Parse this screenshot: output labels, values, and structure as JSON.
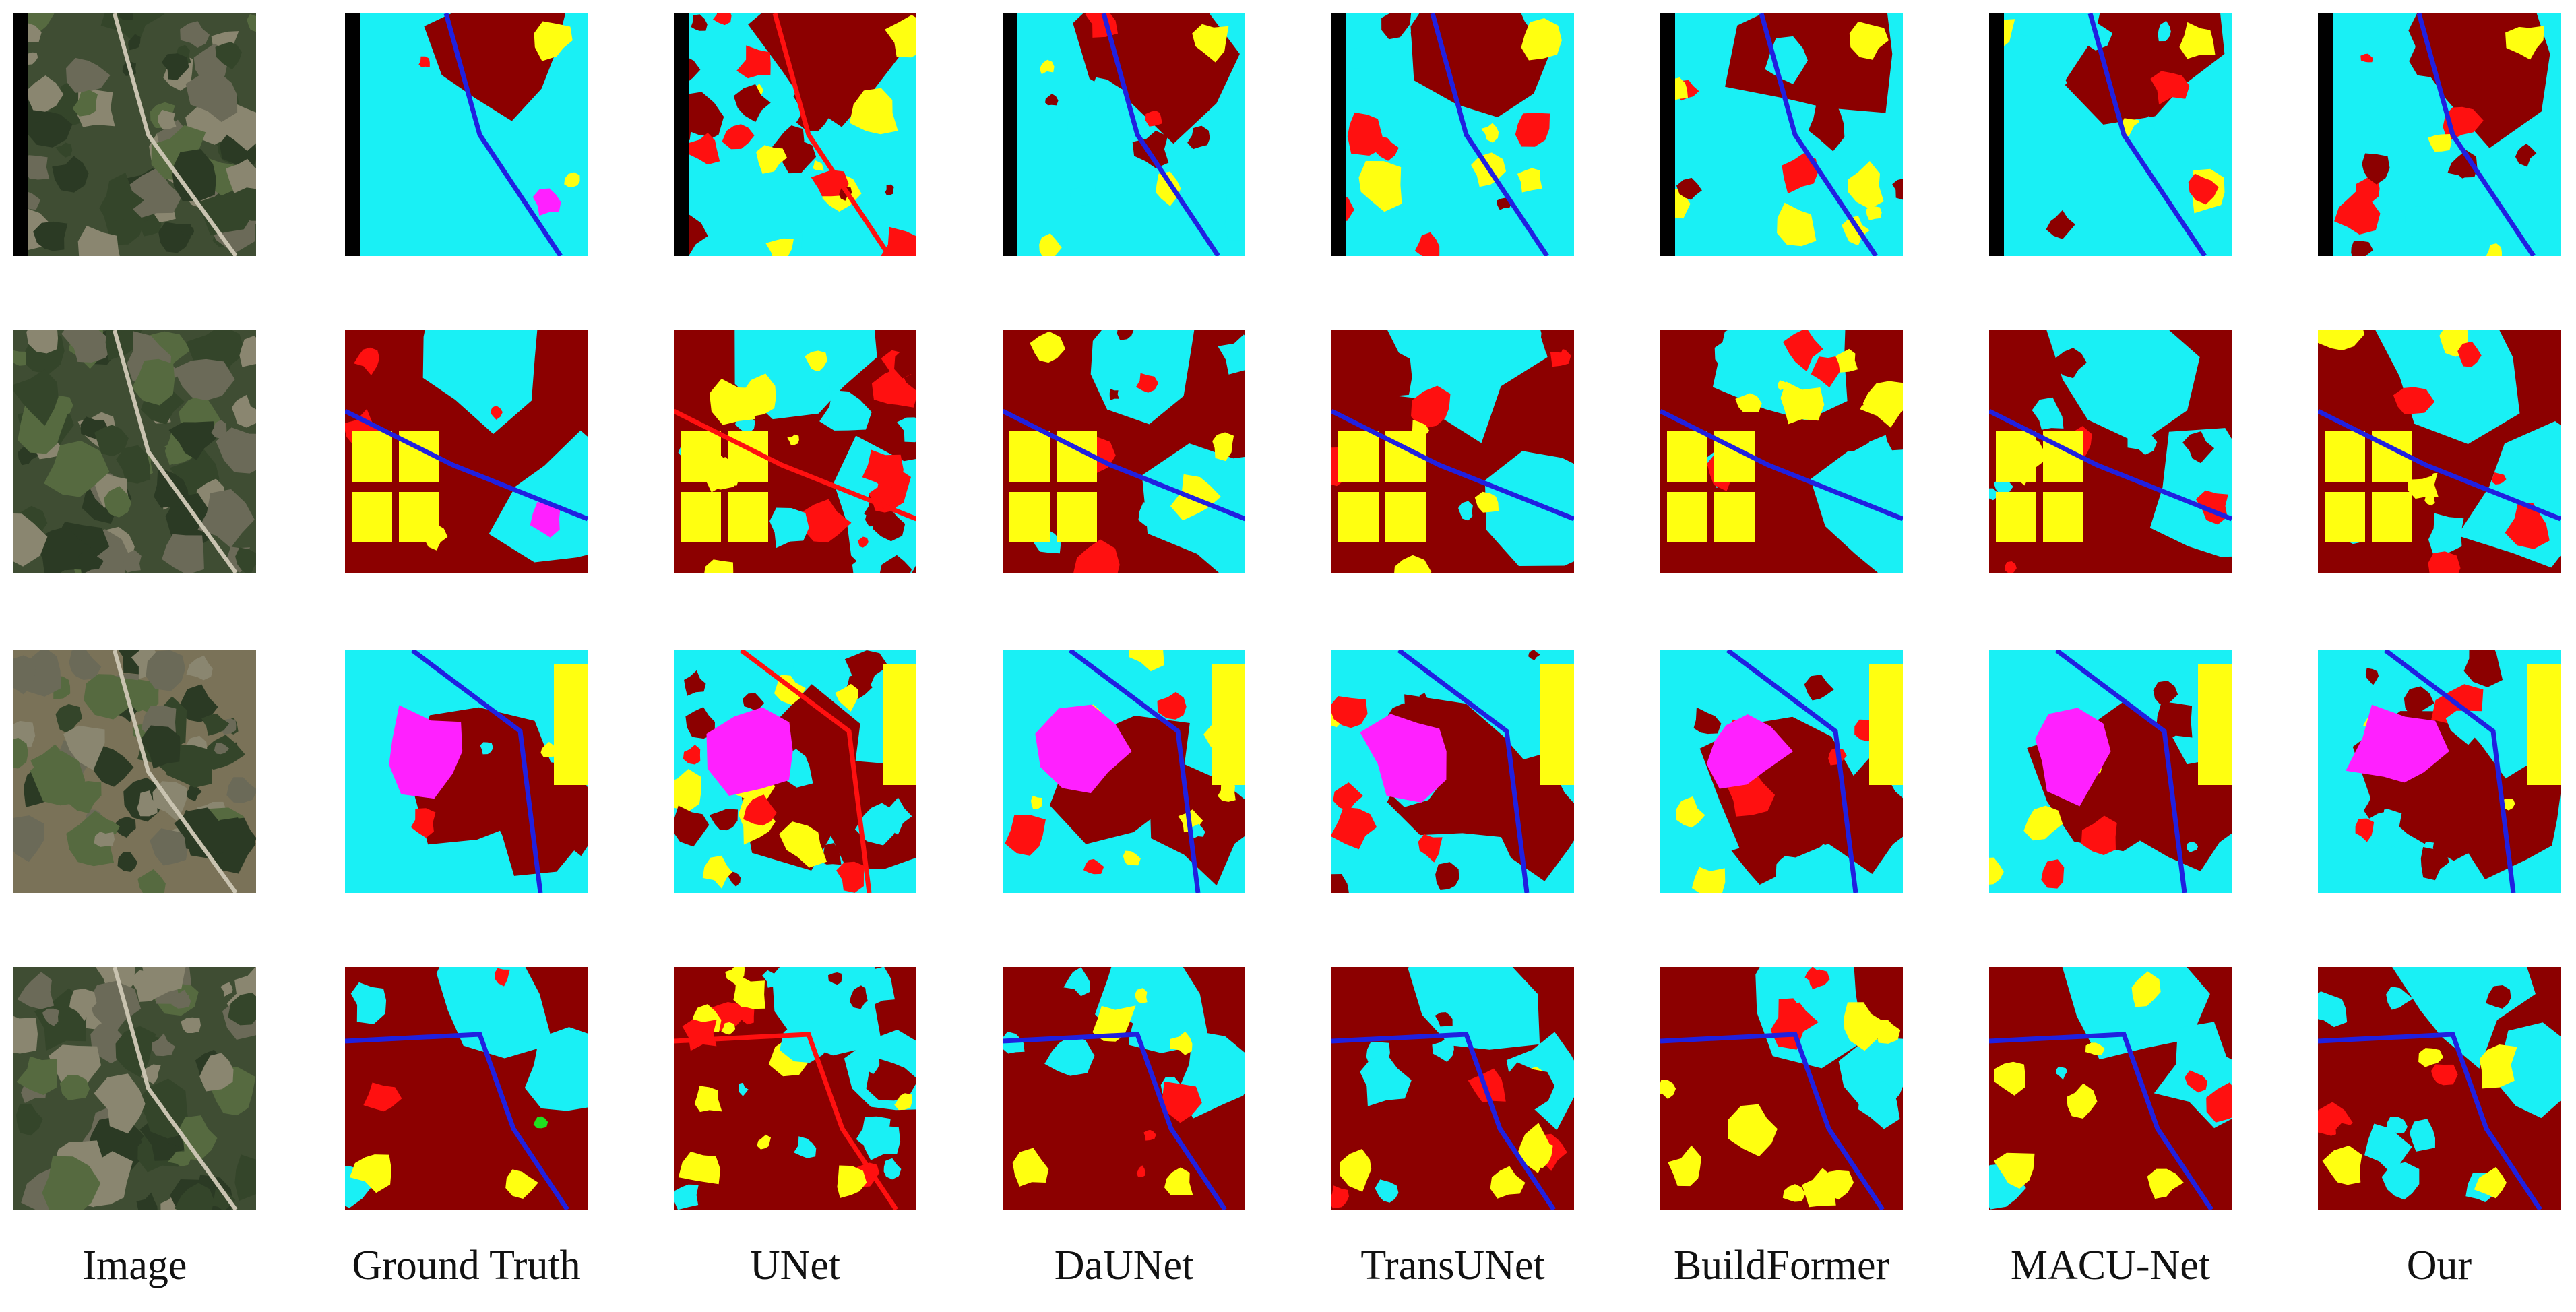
{
  "columns": [
    "Image",
    "Ground Truth",
    "UNet",
    "DaUNet",
    "TransUNet",
    "BuildFormer",
    "MACU-Net",
    "Our"
  ]
}
